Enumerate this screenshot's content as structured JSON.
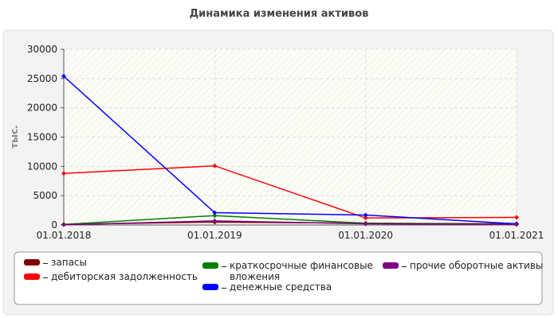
{
  "chart_data": {
    "type": "line",
    "title": "Динамика изменения активов",
    "y_label": "тыс.",
    "categories": [
      "01.01.2018",
      "01.01.2019",
      "01.01.2020",
      "01.01.2021"
    ],
    "series": [
      {
        "name": "запасы",
        "color": "#800000",
        "values": [
          100,
          500,
          300,
          200
        ]
      },
      {
        "name": "дебиторская задолженность",
        "color": "#ff0000",
        "values": [
          8800,
          10100,
          1200,
          1300
        ]
      },
      {
        "name": "краткосрочные финансовые вложения",
        "color": "#008000",
        "values": [
          100,
          1600,
          300,
          100
        ]
      },
      {
        "name": "денежные средства",
        "color": "#0000ff",
        "values": [
          25400,
          2100,
          1700,
          200
        ]
      },
      {
        "name": "прочие оборотные активы",
        "color": "#800080",
        "values": [
          50,
          700,
          200,
          100
        ]
      }
    ],
    "ylim": [
      0,
      30000
    ],
    "yticks": [
      0,
      5000,
      10000,
      15000,
      20000,
      25000,
      30000
    ],
    "grid": true
  }
}
